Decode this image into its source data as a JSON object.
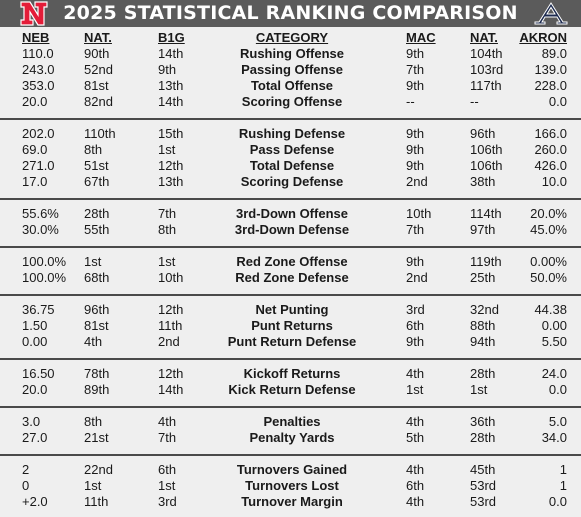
{
  "title": "2025 STATISTICAL RANKING COMPARISON",
  "colors": {
    "nebraska_red": "#e41c38",
    "akron_navy": "#1d2b4f",
    "title_bar": "#5b5b5b"
  },
  "logos": {
    "left": "nebraska-n-logo",
    "right": "akron-a-logo"
  },
  "headers": {
    "neb": "NEB",
    "nat": "NAT.",
    "b1g": "B1G",
    "category": "CATEGORY",
    "mac": "MAC",
    "nat2": "NAT.",
    "akron": "AKRON"
  },
  "groups": [
    [
      {
        "neb": "110.0",
        "nat": "90th",
        "b1g": "14th",
        "category": "Rushing Offense",
        "mac": "9th",
        "nat2": "104th",
        "akron": "89.0"
      },
      {
        "neb": "243.0",
        "nat": "52nd",
        "b1g": "9th",
        "category": "Passing Offense",
        "mac": "7th",
        "nat2": "103rd",
        "akron": "139.0"
      },
      {
        "neb": "353.0",
        "nat": "81st",
        "b1g": "13th",
        "category": "Total Offense",
        "mac": "9th",
        "nat2": "117th",
        "akron": "228.0"
      },
      {
        "neb": "20.0",
        "nat": "82nd",
        "b1g": "14th",
        "category": "Scoring Offense",
        "mac": "--",
        "nat2": "--",
        "akron": "0.0"
      }
    ],
    [
      {
        "neb": "202.0",
        "nat": "110th",
        "b1g": "15th",
        "category": "Rushing Defense",
        "mac": "9th",
        "nat2": "96th",
        "akron": "166.0"
      },
      {
        "neb": "69.0",
        "nat": "8th",
        "b1g": "1st",
        "category": "Pass Defense",
        "mac": "9th",
        "nat2": "106th",
        "akron": "260.0"
      },
      {
        "neb": "271.0",
        "nat": "51st",
        "b1g": "12th",
        "category": "Total Defense",
        "mac": "9th",
        "nat2": "106th",
        "akron": "426.0"
      },
      {
        "neb": "17.0",
        "nat": "67th",
        "b1g": "13th",
        "category": "Scoring Defense",
        "mac": "2nd",
        "nat2": "38th",
        "akron": "10.0"
      }
    ],
    [
      {
        "neb": "55.6%",
        "nat": "28th",
        "b1g": "7th",
        "category": "3rd-Down Offense",
        "mac": "10th",
        "nat2": "114th",
        "akron": "20.0%"
      },
      {
        "neb": "30.0%",
        "nat": "55th",
        "b1g": "8th",
        "category": "3rd-Down Defense",
        "mac": "7th",
        "nat2": "97th",
        "akron": "45.0%"
      }
    ],
    [
      {
        "neb": "100.0%",
        "nat": "1st",
        "b1g": "1st",
        "category": "Red Zone Offense",
        "mac": "9th",
        "nat2": "119th",
        "akron": "0.00%"
      },
      {
        "neb": "100.0%",
        "nat": "68th",
        "b1g": "10th",
        "category": "Red Zone Defense",
        "mac": "2nd",
        "nat2": "25th",
        "akron": "50.0%"
      }
    ],
    [
      {
        "neb": "36.75",
        "nat": "96th",
        "b1g": "12th",
        "category": "Net Punting",
        "mac": "3rd",
        "nat2": "32nd",
        "akron": "44.38"
      },
      {
        "neb": "1.50",
        "nat": "81st",
        "b1g": "11th",
        "category": "Punt Returns",
        "mac": "6th",
        "nat2": "88th",
        "akron": "0.00"
      },
      {
        "neb": "0.00",
        "nat": "4th",
        "b1g": "2nd",
        "category": "Punt Return Defense",
        "mac": "9th",
        "nat2": "94th",
        "akron": "5.50"
      }
    ],
    [
      {
        "neb": "16.50",
        "nat": "78th",
        "b1g": "12th",
        "category": "Kickoff Returns",
        "mac": "4th",
        "nat2": "28th",
        "akron": "24.0"
      },
      {
        "neb": "20.0",
        "nat": "89th",
        "b1g": "14th",
        "category": "Kick Return Defense",
        "mac": "1st",
        "nat2": "1st",
        "akron": "0.0"
      }
    ],
    [
      {
        "neb": "3.0",
        "nat": "8th",
        "b1g": "4th",
        "category": "Penalties",
        "mac": "4th",
        "nat2": "36th",
        "akron": "5.0"
      },
      {
        "neb": "27.0",
        "nat": "21st",
        "b1g": "7th",
        "category": "Penalty Yards",
        "mac": "5th",
        "nat2": "28th",
        "akron": "34.0"
      }
    ],
    [
      {
        "neb": "2",
        "nat": "22nd",
        "b1g": "6th",
        "category": "Turnovers Gained",
        "mac": "4th",
        "nat2": "45th",
        "akron": "1"
      },
      {
        "neb": "0",
        "nat": "1st",
        "b1g": "1st",
        "category": "Turnovers Lost",
        "mac": "6th",
        "nat2": "53rd",
        "akron": "1"
      },
      {
        "neb": "+2.0",
        "nat": "11th",
        "b1g": "3rd",
        "category": "Turnover Margin",
        "mac": "4th",
        "nat2": "53rd",
        "akron": "0.0"
      }
    ]
  ]
}
